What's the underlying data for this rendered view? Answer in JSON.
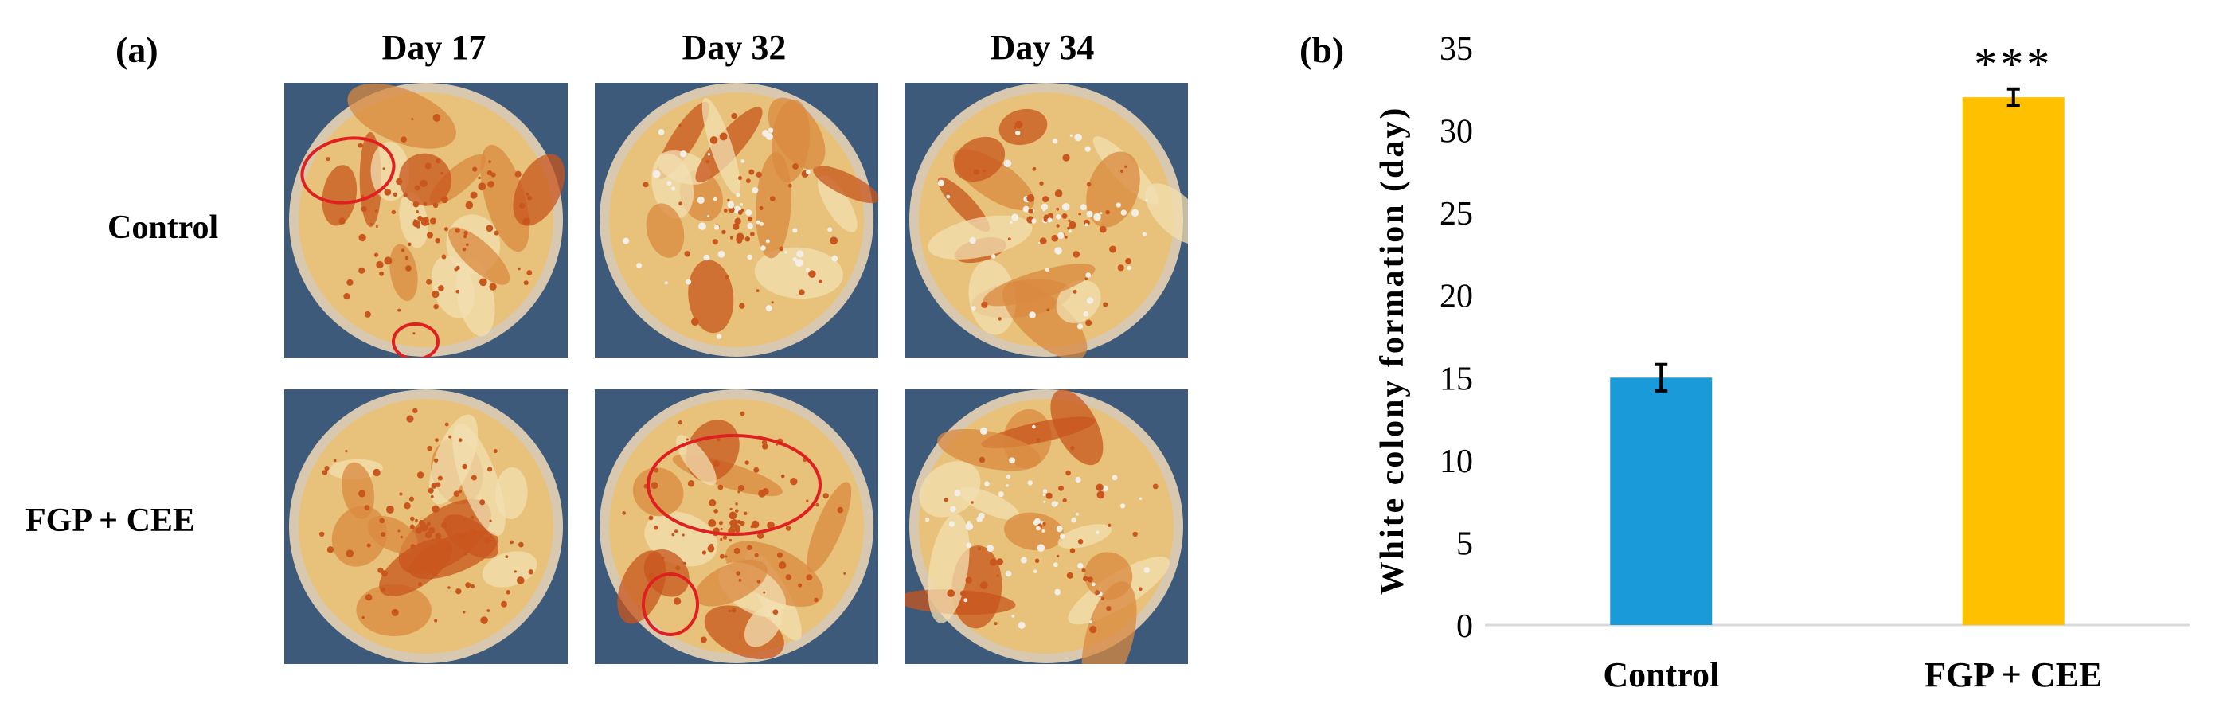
{
  "panel_a": {
    "label": "(a)",
    "columns": [
      "Day 17",
      "Day 32",
      "Day 34"
    ],
    "rows": [
      "Control",
      "FGP + CEE"
    ]
  },
  "panel_b": {
    "label": "(b)"
  },
  "colors": {
    "control_bar": "#1b9ad9",
    "treatment_bar": "#ffc000",
    "marker_circle": "#e02020",
    "photo_background": "#3d5a7a",
    "kimchi_light": "#e8c27a",
    "kimchi_red": "#c8561d"
  },
  "chart_data": {
    "type": "bar",
    "categories": [
      "Control",
      "FGP + CEE"
    ],
    "series": [
      {
        "values": [
          15,
          32
        ],
        "error": [
          0.8,
          0.5
        ]
      }
    ],
    "annotations": [
      {
        "category": "FGP + CEE",
        "text": "***"
      }
    ],
    "title": "",
    "xlabel": "",
    "ylabel": "White colony formation (day)",
    "ylim": [
      0,
      35
    ],
    "yticks": [
      "0",
      "5",
      "10",
      "15",
      "20",
      "25",
      "30",
      "35"
    ],
    "grid": false
  }
}
